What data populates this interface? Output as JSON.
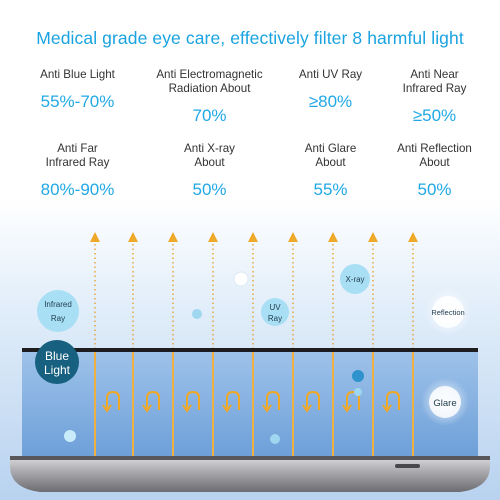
{
  "headline": "Medical grade eye care, effectively filter 8 harmful light",
  "stats": [
    {
      "label_1": "Anti Blue Light",
      "label_2": "",
      "value": "55%-70%"
    },
    {
      "label_1": "Anti Electromagnetic",
      "label_2": "Radiation About",
      "value": "70%"
    },
    {
      "label_1": "Anti UV Ray",
      "label_2": "",
      "value": "≥80%"
    },
    {
      "label_1": "Anti Near",
      "label_2": "Infrared Ray",
      "value": "≥50%"
    },
    {
      "label_1": "Anti Far",
      "label_2": "Infrared Ray",
      "value": "80%-90%"
    },
    {
      "label_1": "Anti X-ray",
      "label_2": "About",
      "value": "50%"
    },
    {
      "label_1": "Anti Glare",
      "label_2": "About",
      "value": "55%"
    },
    {
      "label_1": "Anti Reflection",
      "label_2": "About",
      "value": "50%"
    }
  ],
  "bubbles": {
    "infrared": [
      "Infrared",
      "Ray"
    ],
    "uv": [
      "UV",
      "Ray"
    ],
    "xray": "X-ray",
    "reflection": "Reflection",
    "blue_light": [
      "Blue",
      "Light"
    ],
    "glare": "Glare"
  },
  "colors": {
    "accent": "#1aa3e0",
    "arrow": "#f0a828",
    "bubble": "#a9dff5",
    "blue_light_bubble": "#17607f"
  }
}
